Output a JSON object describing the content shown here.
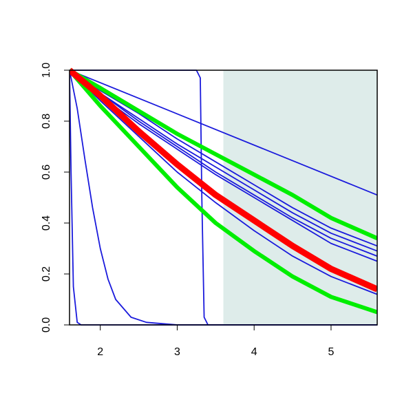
{
  "chart_data": {
    "type": "line",
    "xlim": [
      1.6,
      5.6
    ],
    "ylim": [
      0,
      1
    ],
    "xticks": [
      2,
      3,
      4,
      5
    ],
    "yticks": [
      {
        "value": 0,
        "label": "0.0"
      },
      0.2,
      0.4,
      0.6,
      0.8,
      {
        "value": 1,
        "label": "1.0"
      }
    ],
    "shade_x": [
      3.6,
      5.6
    ],
    "shade_color": "#deecea",
    "series": [
      {
        "color": "#1a1adc",
        "width": 1.8,
        "x": [
          1.6,
          3.25,
          3.3,
          3.32,
          3.35,
          3.4,
          5.6
        ],
        "values": [
          1,
          1,
          0.97,
          0.5,
          0.03,
          0,
          0
        ]
      },
      {
        "color": "#1a1adc",
        "width": 1.8,
        "x": [
          1.6,
          1.62,
          1.65,
          1.7,
          1.75,
          5.6
        ],
        "values": [
          1,
          0.6,
          0.15,
          0.01,
          0,
          0
        ]
      },
      {
        "color": "#1a1adc",
        "width": 1.8,
        "x": [
          1.6,
          1.7,
          1.8,
          1.9,
          2.0,
          2.1,
          2.2,
          2.4,
          2.6,
          3.0,
          5.6
        ],
        "values": [
          1,
          0.85,
          0.65,
          0.46,
          0.3,
          0.18,
          0.1,
          0.03,
          0.01,
          0,
          0
        ]
      },
      {
        "color": "#1a1adc",
        "width": 1.8,
        "x": [
          1.6,
          5.6
        ],
        "values": [
          1,
          0.51
        ]
      },
      {
        "color": "#1a1adc",
        "width": 1.8,
        "x": [
          1.6,
          2.0,
          2.5,
          3.0,
          3.5,
          4.0,
          4.5,
          5.0,
          5.6
        ],
        "values": [
          1,
          0.92,
          0.83,
          0.73,
          0.64,
          0.55,
          0.46,
          0.38,
          0.31
        ]
      },
      {
        "color": "#1a1adc",
        "width": 1.8,
        "x": [
          1.6,
          2.0,
          2.5,
          3.0,
          3.5,
          4.0,
          4.5,
          5.0,
          5.6
        ],
        "values": [
          1,
          0.91,
          0.81,
          0.71,
          0.62,
          0.53,
          0.44,
          0.36,
          0.29
        ]
      },
      {
        "color": "#1a1adc",
        "width": 1.8,
        "x": [
          1.6,
          2.0,
          2.5,
          3.0,
          3.5,
          4.0,
          4.5,
          5.0,
          5.6
        ],
        "values": [
          1,
          0.91,
          0.8,
          0.7,
          0.6,
          0.51,
          0.42,
          0.34,
          0.27
        ]
      },
      {
        "color": "#1a1adc",
        "width": 1.8,
        "x": [
          1.6,
          2.0,
          2.5,
          3.0,
          3.5,
          4.0,
          4.5,
          5.0,
          5.6
        ],
        "values": [
          1,
          0.9,
          0.79,
          0.69,
          0.59,
          0.5,
          0.41,
          0.32,
          0.25
        ]
      },
      {
        "color": "#1a1adc",
        "width": 1.8,
        "x": [
          1.6,
          2.0,
          2.5,
          3.0,
          3.5,
          4.0,
          4.5,
          5.0,
          5.6
        ],
        "values": [
          1,
          0.88,
          0.74,
          0.6,
          0.48,
          0.37,
          0.27,
          0.19,
          0.12
        ]
      },
      {
        "color": "#00ee00",
        "width": 6,
        "x": [
          1.6,
          2.0,
          2.5,
          3.0,
          3.5,
          4.0,
          4.5,
          5.0,
          5.6
        ],
        "values": [
          1,
          0.93,
          0.84,
          0.75,
          0.67,
          0.59,
          0.51,
          0.42,
          0.34
        ]
      },
      {
        "color": "#00ee00",
        "width": 6,
        "x": [
          1.6,
          2.0,
          2.5,
          3.0,
          3.5,
          4.0,
          4.5,
          5.0,
          5.6
        ],
        "values": [
          1,
          0.86,
          0.7,
          0.54,
          0.4,
          0.29,
          0.19,
          0.11,
          0.05
        ]
      },
      {
        "color": "#ff0000",
        "width": 9,
        "x": [
          1.6,
          2.0,
          2.5,
          3.0,
          3.5,
          4.0,
          4.5,
          5.0,
          5.6
        ],
        "values": [
          1,
          0.9,
          0.76,
          0.63,
          0.51,
          0.41,
          0.31,
          0.22,
          0.14
        ]
      }
    ]
  }
}
